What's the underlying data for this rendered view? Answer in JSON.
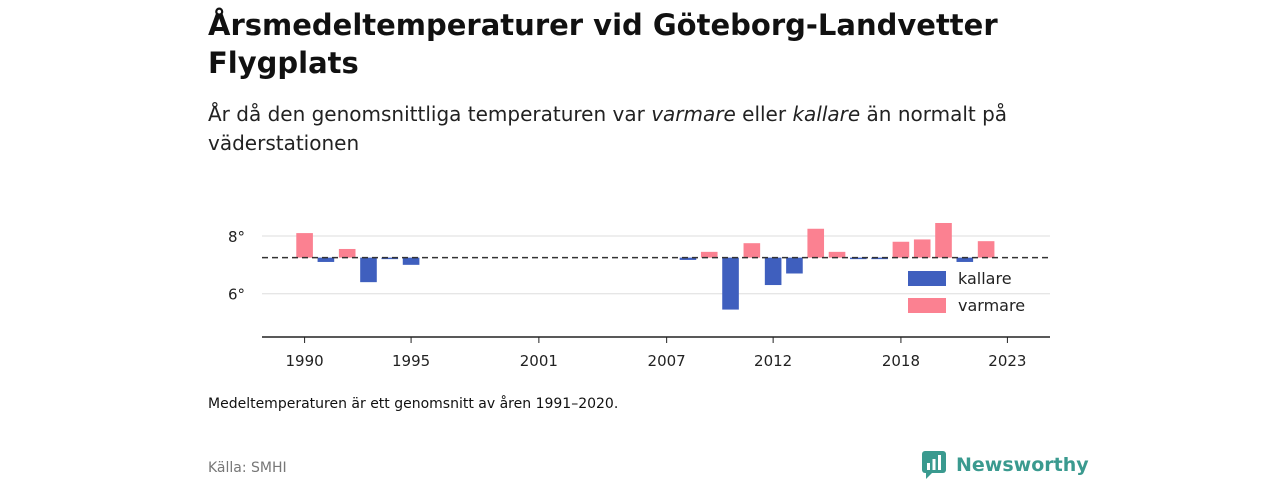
{
  "title": "Årsmedeltemperaturer vid Göteborg-Landvetter Flygplats",
  "subtitle": {
    "part1": "År då den genomsnittliga temperaturen var ",
    "warm_word": "varmare",
    "part2": " eller ",
    "cold_word": "kallare",
    "part3": " än normalt på väderstationen"
  },
  "note": "Medeltemperaturen är ett genomsnitt av åren 1991–2020.",
  "source": "Källa: SMHI",
  "brand": {
    "name": "Newsworthy",
    "icon": "newsworthy-logo-icon"
  },
  "colors": {
    "warm": "#fb8191",
    "cold": "#3f5fbe",
    "reference": "#333333",
    "grid": "#dddddd",
    "axis": "#222222"
  },
  "chart_data": {
    "type": "bar",
    "title": "Årsmedeltemperaturer vid Göteborg-Landvetter Flygplats",
    "reference_value": 7.25,
    "reference_label": "Medeltemperaturen är ett genomsnitt av åren 1991–2020.",
    "xlim": [
      1988,
      2025
    ],
    "ylim": [
      4.5,
      8.9
    ],
    "xticks": [
      1990,
      1995,
      2001,
      2007,
      2012,
      2018,
      2023
    ],
    "yticks": [
      6,
      8
    ],
    "ytick_labels": [
      "6°",
      "8°"
    ],
    "grid": true,
    "legend": {
      "placement": "bottom-right",
      "entries": [
        {
          "label": "kallare",
          "color": "#3f5fbe"
        },
        {
          "label": "varmare",
          "color": "#fb8191"
        }
      ]
    },
    "values": [
      {
        "year": 1990,
        "value": 8.1
      },
      {
        "year": 1991,
        "value": 7.1
      },
      {
        "year": 1992,
        "value": 7.55
      },
      {
        "year": 1993,
        "value": 6.4
      },
      {
        "year": 1994,
        "value": 7.2
      },
      {
        "year": 1995,
        "value": 7.0
      },
      {
        "year": 2008,
        "value": 7.17
      },
      {
        "year": 2009,
        "value": 7.45
      },
      {
        "year": 2010,
        "value": 5.45
      },
      {
        "year": 2011,
        "value": 7.75
      },
      {
        "year": 2012,
        "value": 6.3
      },
      {
        "year": 2013,
        "value": 6.7
      },
      {
        "year": 2014,
        "value": 8.25
      },
      {
        "year": 2015,
        "value": 7.45
      },
      {
        "year": 2016,
        "value": 7.21
      },
      {
        "year": 2017,
        "value": 7.2
      },
      {
        "year": 2018,
        "value": 7.8
      },
      {
        "year": 2019,
        "value": 7.88
      },
      {
        "year": 2020,
        "value": 8.45
      },
      {
        "year": 2021,
        "value": 7.1
      },
      {
        "year": 2022,
        "value": 7.82
      }
    ]
  }
}
